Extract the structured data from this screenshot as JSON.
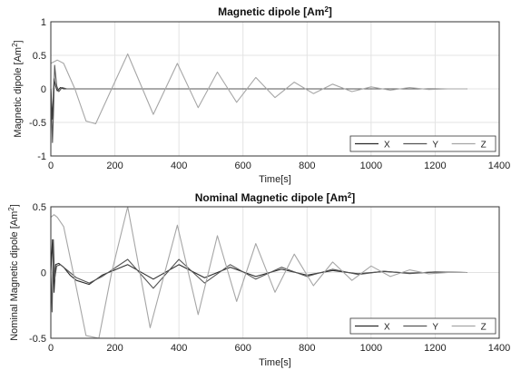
{
  "chart_data": [
    {
      "type": "line",
      "title": "Magnetic dipole [Am",
      "title_sup": "2",
      "title_end": "]",
      "xlabel": "Time[s]",
      "ylabel": "Magnetic dipole [Am",
      "ylabel_sup": "2",
      "ylabel_end": "]",
      "xlim": [
        0,
        1400
      ],
      "ylim": [
        -1,
        1
      ],
      "xticks": [
        "0",
        "200",
        "400",
        "600",
        "800",
        "1000",
        "1200",
        "1400"
      ],
      "yticks": [
        "-1",
        "-0.5",
        "0",
        "0.5",
        "1"
      ],
      "grid": true,
      "legend_position": "bottom-right",
      "series": [
        {
          "name": "X",
          "color": "#2b2b2b",
          "x": [
            0,
            5,
            10,
            15,
            20,
            30,
            40,
            60,
            100,
            200,
            400,
            600,
            800,
            1000,
            1200,
            1300
          ],
          "y": [
            0,
            -0.45,
            0.15,
            0.04,
            -0.03,
            0.02,
            0,
            0,
            0,
            0,
            0,
            0,
            0,
            0,
            0,
            0
          ]
        },
        {
          "name": "Y",
          "color": "#555555",
          "x": [
            0,
            5,
            8,
            12,
            18,
            25,
            35,
            50,
            80,
            120,
            200,
            400,
            800,
            1300
          ],
          "y": [
            0,
            -0.8,
            -0.4,
            0.35,
            0.05,
            -0.04,
            0.02,
            0,
            0,
            0,
            0,
            0,
            0,
            0
          ]
        },
        {
          "name": "Z",
          "color": "#a6a6a6",
          "x": [
            0,
            20,
            40,
            75,
            110,
            140,
            190,
            240,
            320,
            395,
            460,
            520,
            580,
            640,
            700,
            760,
            820,
            880,
            940,
            1000,
            1060,
            1120,
            1180,
            1240,
            1300
          ],
          "y": [
            0.38,
            0.43,
            0.38,
            0.0,
            -0.48,
            -0.52,
            0.0,
            0.52,
            -0.38,
            0.38,
            -0.28,
            0.25,
            -0.2,
            0.17,
            -0.13,
            0.1,
            -0.07,
            0.07,
            -0.04,
            0.03,
            -0.02,
            0.02,
            -0.01,
            0.0,
            0.0
          ]
        }
      ]
    },
    {
      "type": "line",
      "title": "Nominal Magnetic dipole [Am",
      "title_sup": "2",
      "title_end": "]",
      "xlabel": "Time[s]",
      "ylabel": "Nominal Magnetic dipole [Am",
      "ylabel_sup": "2",
      "ylabel_end": "]",
      "xlim": [
        0,
        1400
      ],
      "ylim": [
        -0.5,
        0.5
      ],
      "xticks": [
        "0",
        "200",
        "400",
        "600",
        "800",
        "1000",
        "1200",
        "1400"
      ],
      "yticks": [
        "-0.5",
        "0",
        "0.5"
      ],
      "grid": true,
      "legend_position": "bottom-right",
      "series": [
        {
          "name": "X",
          "color": "#2b2b2b",
          "x": [
            0,
            5,
            10,
            15,
            25,
            40,
            60,
            80,
            120,
            160,
            240,
            320,
            400,
            480,
            560,
            640,
            720,
            800,
            880,
            960,
            1040,
            1120,
            1200,
            1300
          ],
          "y": [
            0,
            0.25,
            -0.15,
            0.06,
            0.07,
            0.04,
            -0.02,
            -0.06,
            -0.09,
            -0.02,
            0.06,
            -0.05,
            0.06,
            -0.04,
            0.04,
            -0.03,
            0.025,
            -0.02,
            0.015,
            -0.01,
            0.008,
            -0.005,
            0.003,
            0
          ]
        },
        {
          "name": "Y",
          "color": "#555555",
          "x": [
            0,
            4,
            8,
            12,
            18,
            30,
            50,
            80,
            120,
            160,
            240,
            320,
            400,
            480,
            560,
            640,
            720,
            800,
            880,
            960,
            1040,
            1120,
            1200,
            1300
          ],
          "y": [
            0,
            -0.3,
            0.25,
            -0.05,
            0.05,
            0.06,
            0.02,
            -0.04,
            -0.08,
            -0.03,
            0.1,
            -0.12,
            0.1,
            -0.08,
            0.06,
            -0.05,
            0.04,
            -0.03,
            0.025,
            -0.015,
            0.01,
            -0.008,
            0.005,
            0
          ]
        },
        {
          "name": "Z",
          "color": "#a6a6a6",
          "x": [
            0,
            10,
            20,
            40,
            70,
            110,
            150,
            190,
            240,
            310,
            395,
            460,
            520,
            580,
            640,
            700,
            760,
            820,
            880,
            940,
            1000,
            1060,
            1120,
            1180,
            1240,
            1300
          ],
          "y": [
            0.42,
            0.44,
            0.42,
            0.35,
            0.0,
            -0.48,
            -0.5,
            0.0,
            0.5,
            -0.42,
            0.36,
            -0.32,
            0.28,
            -0.22,
            0.22,
            -0.15,
            0.14,
            -0.1,
            0.08,
            -0.06,
            0.05,
            -0.03,
            0.02,
            -0.01,
            0.0,
            0.0
          ]
        }
      ]
    }
  ]
}
